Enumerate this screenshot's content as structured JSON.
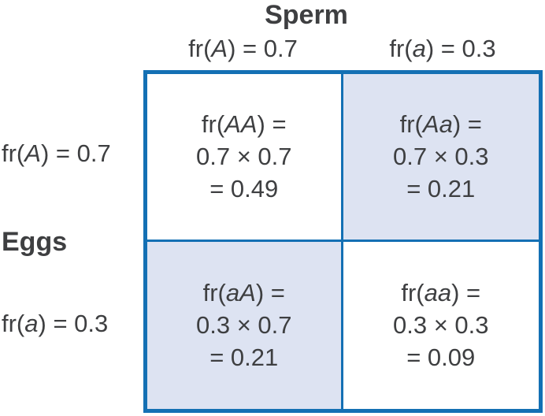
{
  "colors": {
    "border_blue": "#1470b4",
    "shaded_cell": "#dde3f2",
    "text": "#3e3f41"
  },
  "titles": {
    "sperm": "Sperm",
    "eggs": "Eggs"
  },
  "col_headers": [
    {
      "prefix": "fr(",
      "allele": "A",
      "suffix": ") = 0.7"
    },
    {
      "prefix": "fr(",
      "allele": "a",
      "suffix": ") = 0.3"
    }
  ],
  "row_headers": [
    {
      "prefix": "fr(",
      "allele": "A",
      "suffix": ") = 0.7"
    },
    {
      "prefix": "fr(",
      "allele": "a",
      "suffix": ") = 0.3"
    }
  ],
  "cells": [
    {
      "prefix": "fr(",
      "allele": "AA",
      "suffix": ") =",
      "line2": "0.7 × 0.7",
      "line3": "= 0.49",
      "shaded": false
    },
    {
      "prefix": "fr(",
      "allele": "Aa",
      "suffix": ") =",
      "line2": "0.7 × 0.3",
      "line3": "= 0.21",
      "shaded": true
    },
    {
      "prefix": "fr(",
      "allele": "aA",
      "suffix": ") =",
      "line2": "0.3 × 0.7",
      "line3": "= 0.21",
      "shaded": true
    },
    {
      "prefix": "fr(",
      "allele": "aa",
      "suffix": ") =",
      "line2": "0.3 × 0.3",
      "line3": "= 0.09",
      "shaded": false
    }
  ]
}
